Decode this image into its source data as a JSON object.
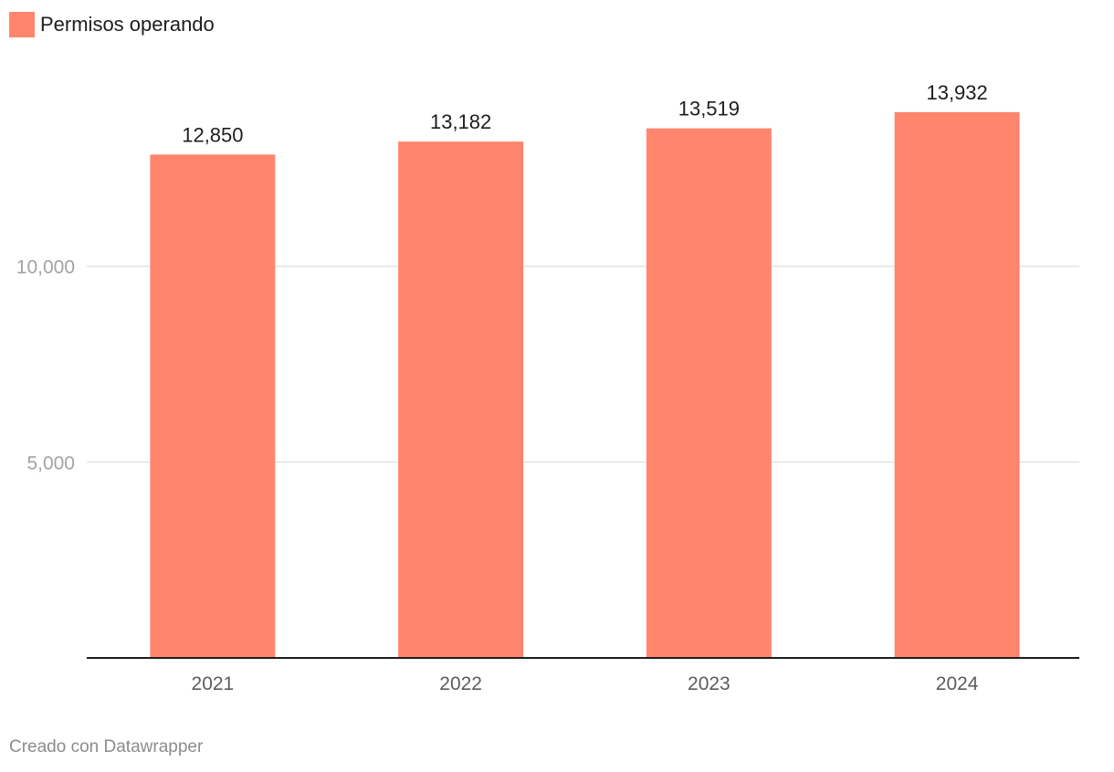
{
  "legend": {
    "label": "Permisos operando",
    "color": "#ff866d"
  },
  "credit": "Creado con Datawrapper",
  "chart_data": {
    "type": "bar",
    "categories": [
      "2021",
      "2022",
      "2023",
      "2024"
    ],
    "values": [
      12850,
      13182,
      13519,
      13932
    ],
    "value_labels": [
      "12,850",
      "13,182",
      "13,519",
      "13,932"
    ],
    "series": [
      {
        "name": "Permisos operando",
        "values": [
          12850,
          13182,
          13519,
          13932
        ]
      }
    ],
    "ylim": [
      0,
      15000
    ],
    "yticks": [
      {
        "value": 5000,
        "label": "5,000"
      },
      {
        "value": 10000,
        "label": "10,000"
      }
    ],
    "title": "",
    "xlabel": "",
    "ylabel": "",
    "grid": true,
    "legend_position": "top-left",
    "bar_color": "#ff866d"
  }
}
